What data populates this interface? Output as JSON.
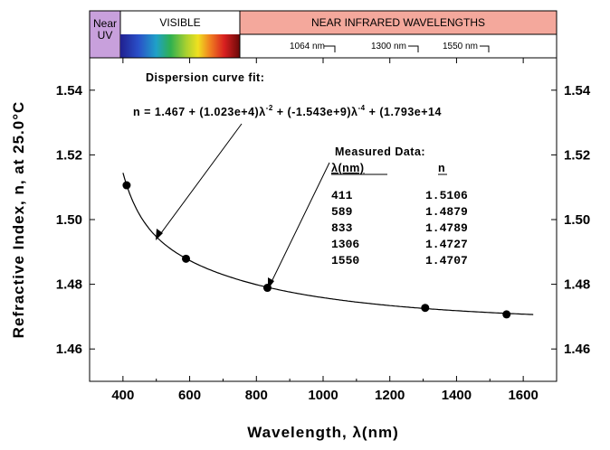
{
  "chart_data": {
    "type": "scatter",
    "xlabel": "Wavelength, λ(nm)",
    "ylabel": "Refractive Index, n, at 25.0°C",
    "xlim": [
      300,
      1700
    ],
    "ylim": [
      1.45,
      1.55
    ],
    "x_ticks": [
      "400",
      "600",
      "800",
      "1000",
      "1200",
      "1400",
      "1600"
    ],
    "y_ticks": [
      "1.46",
      "1.48",
      "1.50",
      "1.52",
      "1.54"
    ],
    "y_ticks_right": [
      "1.46",
      "1.48",
      "1.50",
      "1.52",
      "1.54"
    ],
    "series": [
      {
        "type": "scatter",
        "x": [
          411,
          589,
          833,
          1306,
          1550
        ],
        "y": [
          1.5106,
          1.4879,
          1.4789,
          1.4727,
          1.4707
        ]
      },
      {
        "type": "line",
        "fit": "n = A + B λ^-2 + C λ^-4 + D λ^-6",
        "coefficients": {
          "A": 1.467,
          "B": 10230,
          "C": -1543000000,
          "D": 179300000000000
        },
        "x_range": [
          400,
          1630
        ]
      }
    ],
    "annotations": {
      "fit_title": "Dispersion curve fit:",
      "fit_equation": {
        "part1": "n = 1.467 + (1.023e+4)λ",
        "exp1": "-2",
        "part2": " + (-1.543e+9)λ",
        "exp2": "-4",
        "part3": " + (1.793e+14"
      },
      "measured_title": "Measured Data:",
      "col_lambda": "λ(nm)",
      "col_n": "n",
      "table_rows": [
        [
          "411",
          "1.5106"
        ],
        [
          "589",
          "1.4879"
        ],
        [
          "833",
          "1.4789"
        ],
        [
          "1306",
          "1.4727"
        ],
        [
          "1550",
          "1.4707"
        ]
      ]
    },
    "top_band": {
      "near_uv": [
        "Near",
        "UV"
      ],
      "visible": "VISIBLE",
      "near_ir": "NEAR INFRARED WAVELENGTHS",
      "wavelength_marks": [
        "1064 nm",
        "1300 nm",
        "1550 nm"
      ],
      "colors": {
        "near_uv": "#c8a0dc",
        "near_ir": "#f4a89c"
      }
    }
  }
}
